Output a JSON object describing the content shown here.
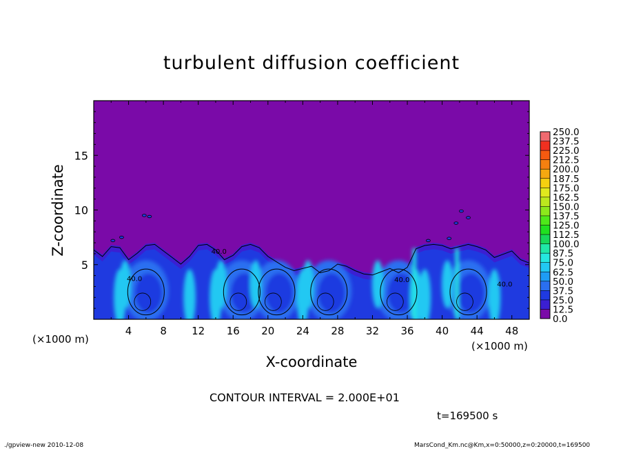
{
  "chart_data": {
    "type": "heatmap",
    "title": "turbulent diffusion coefficient",
    "xlabel": "X-coordinate",
    "ylabel": "Z-coordinate",
    "x_unit_label": "(×1000 m)",
    "xlim": [
      0,
      50
    ],
    "ylim": [
      0,
      20
    ],
    "x_ticks": [
      4,
      8,
      12,
      16,
      20,
      24,
      28,
      32,
      36,
      40,
      44,
      48
    ],
    "y_ticks": [
      5,
      10,
      15
    ],
    "colorbar": {
      "levels": [
        0.0,
        12.5,
        25.0,
        37.5,
        50.0,
        62.5,
        75.0,
        87.5,
        100.0,
        112.5,
        125.0,
        137.5,
        150.0,
        162.5,
        175.0,
        187.5,
        200.0,
        212.5,
        225.0,
        237.5,
        250.0
      ],
      "labels": [
        "0.0",
        "12.5",
        "25.0",
        "37.5",
        "50.0",
        "62.5",
        "75.0",
        "87.5",
        "100.0",
        "112.5",
        "125.0",
        "137.5",
        "150.0",
        "162.5",
        "175.0",
        "187.5",
        "200.0",
        "212.5",
        "225.0",
        "237.5",
        "250.0"
      ],
      "colors": [
        "#7a0aa8",
        "#3b1fd2",
        "#1f3ae0",
        "#2a6ff0",
        "#1e9cf5",
        "#22c8f2",
        "#25e8e0",
        "#20e8a8",
        "#18d85a",
        "#20e020",
        "#4ee81a",
        "#8ce81c",
        "#bce81e",
        "#e0e81e",
        "#f5d010",
        "#f5a810",
        "#f58010",
        "#f55a10",
        "#f03020",
        "#f06a70"
      ]
    },
    "contour_labels": [
      "40.0",
      "40.0",
      "40.0",
      "40.0"
    ],
    "cloud_top_height": [
      6.5,
      5.9,
      6.8,
      6.7,
      5.6,
      6.2,
      6.9,
      7.0,
      6.4,
      5.8,
      5.2,
      5.9,
      6.9,
      7.0,
      6.5,
      5.6,
      6.0,
      6.8,
      7.0,
      6.7,
      5.9,
      5.4,
      4.9,
      4.6,
      4.8,
      5.0,
      4.4,
      4.6,
      5.2,
      5.0,
      4.6,
      4.3,
      4.2,
      4.5,
      4.8,
      4.4,
      4.9,
      6.6,
      6.9,
      7.0,
      6.9,
      6.6,
      6.8,
      7.0,
      6.8,
      6.5,
      5.8,
      6.1,
      6.4,
      5.6,
      5.3
    ],
    "eddy_centers_x": [
      6,
      17,
      21,
      27,
      35,
      43
    ],
    "contour_interval_text": "CONTOUR INTERVAL = 2.000E+01",
    "time_text": "t=169500 s"
  },
  "footer": {
    "left": "./gpview-new  2010-12-08",
    "right": "MarsCond_Km.nc@Km,x=0:50000,z=0:20000,t=169500"
  }
}
